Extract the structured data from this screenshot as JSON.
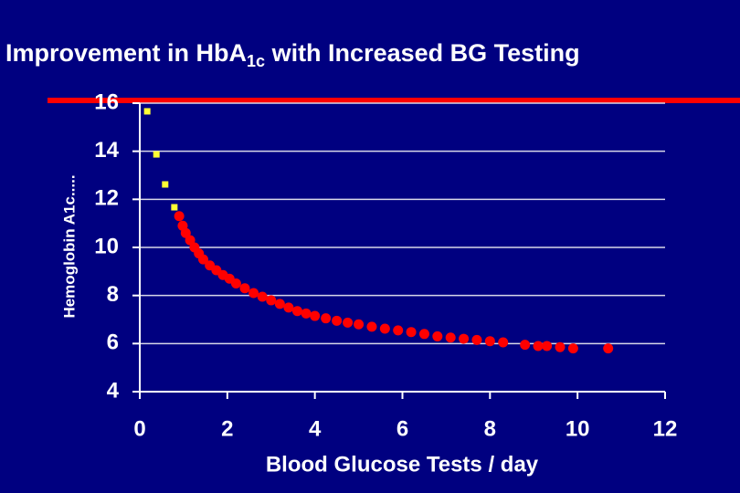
{
  "chart_data": {
    "type": "scatter",
    "title_parts": [
      "Improvement in HbA",
      "1c",
      " with Increased BG Testing"
    ],
    "x_label": "Blood Glucose Tests / day",
    "y_label": "Hemoglobin A1c.....",
    "xlim": [
      0,
      12
    ],
    "xticks": [
      0,
      2,
      4,
      6,
      8,
      10,
      12
    ],
    "ylim": [
      4,
      16
    ],
    "yticks": [
      4,
      6,
      8,
      10,
      12,
      14,
      16
    ],
    "grid": true,
    "series": [
      {
        "color": "#ffff33",
        "marker": "square",
        "x": [
          0.17,
          0.38,
          0.58,
          0.79
        ],
        "values": [
          15.66,
          13.87,
          12.62,
          11.67
        ]
      },
      {
        "color": "#ff0000",
        "marker": "circle",
        "x": [
          0.9,
          0.98,
          1.05,
          1.15,
          1.25,
          1.35,
          1.45,
          1.6,
          1.75,
          1.9,
          2.05,
          2.2,
          2.4,
          2.6,
          2.8,
          3.0,
          3.2,
          3.4,
          3.6,
          3.8,
          4.0,
          4.25,
          4.5,
          4.75,
          5.0,
          5.3,
          5.6,
          5.9,
          6.2,
          6.5,
          6.8,
          7.1,
          7.4,
          7.7,
          8.0,
          8.3,
          8.8,
          9.1,
          9.3,
          9.6,
          9.9,
          10.7
        ],
        "values": [
          11.3,
          10.9,
          10.6,
          10.3,
          10.0,
          9.75,
          9.5,
          9.25,
          9.05,
          8.85,
          8.7,
          8.5,
          8.3,
          8.1,
          7.95,
          7.8,
          7.65,
          7.5,
          7.35,
          7.25,
          7.15,
          7.05,
          6.95,
          6.87,
          6.8,
          6.7,
          6.62,
          6.55,
          6.48,
          6.4,
          6.3,
          6.25,
          6.2,
          6.15,
          6.1,
          6.05,
          5.95,
          5.9,
          5.9,
          5.85,
          5.8,
          5.8
        ]
      }
    ]
  }
}
